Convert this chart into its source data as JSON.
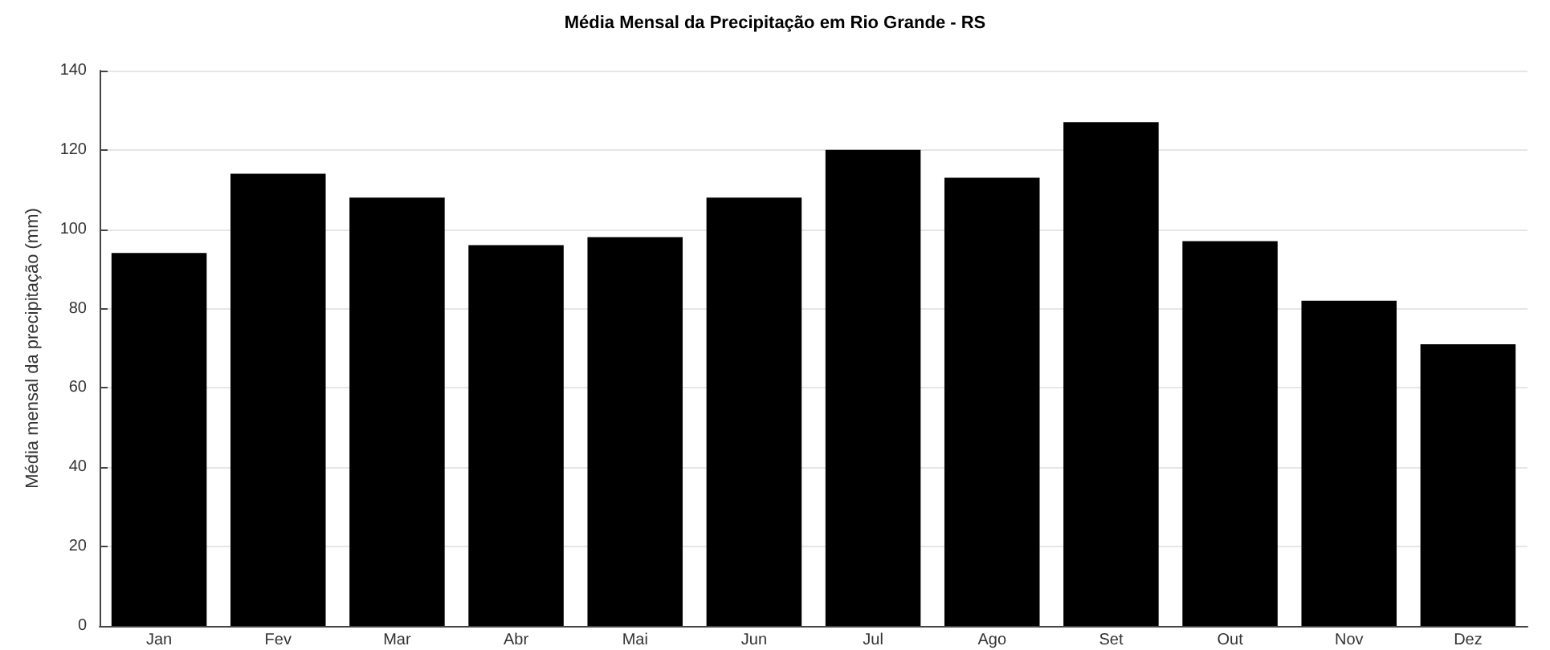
{
  "chart_data": {
    "type": "bar",
    "title": "Média Mensal da Precipitação em Rio Grande - RS",
    "ylabel": "Média mensal da precipitação (mm)",
    "categories": [
      "Jan",
      "Fev",
      "Mar",
      "Abr",
      "Mai",
      "Jun",
      "Jul",
      "Ago",
      "Set",
      "Out",
      "Nov",
      "Dez"
    ],
    "values": [
      94,
      114,
      108,
      96,
      98,
      108,
      120,
      113,
      127,
      97,
      82,
      71
    ],
    "color": "#000000",
    "ylim": [
      0,
      140
    ],
    "yticks": [
      0,
      20,
      40,
      60,
      80,
      100,
      120,
      140
    ],
    "grid": "y"
  }
}
